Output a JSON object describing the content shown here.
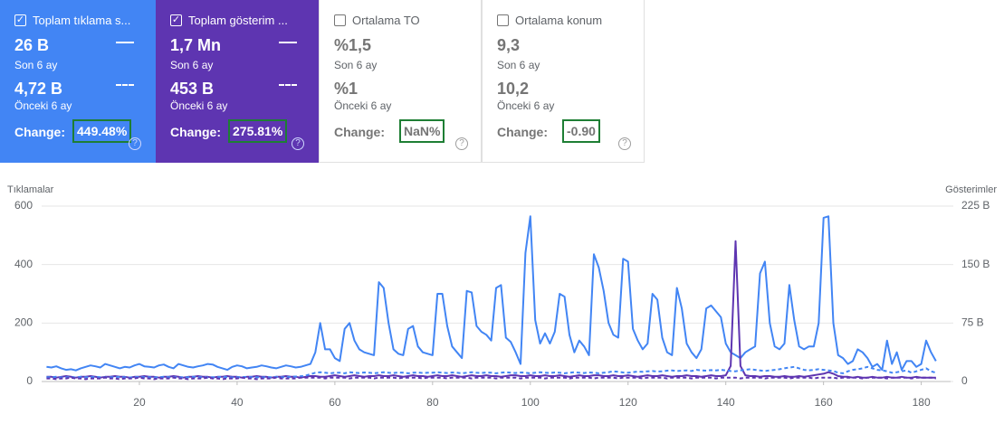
{
  "cards": [
    {
      "title": "Toplam tıklama s...",
      "checked": true,
      "color": "#4285f4",
      "value": "26 B",
      "period": "Son 6 ay",
      "prev_value": "4,72 B",
      "prev_period": "Önceki 6 ay",
      "change_label": "Change:",
      "change": "449.48%"
    },
    {
      "title": "Toplam gösterim ...",
      "checked": true,
      "color": "#5e35b1",
      "value": "1,7 Mn",
      "period": "Son 6 ay",
      "prev_value": "453 B",
      "prev_period": "Önceki 6 ay",
      "change_label": "Change:",
      "change": "275.81%"
    },
    {
      "title": "Ortalama TO",
      "checked": false,
      "value": "%1,5",
      "period": "Son 6 ay",
      "prev_value": "%1",
      "prev_period": "Önceki 6 ay",
      "change_label": "Change:",
      "change": "NaN%"
    },
    {
      "title": "Ortalama konum",
      "checked": false,
      "value": "9,3",
      "period": "Son 6 ay",
      "prev_value": "10,2",
      "prev_period": "Önceki 6 ay",
      "change_label": "Change:",
      "change": "-0.90"
    }
  ],
  "chart_data": {
    "type": "line",
    "y_label": "Tıklamalar",
    "y2_label": "Gösterimler",
    "grid": true,
    "x": [
      1,
      2,
      3,
      4,
      5,
      6,
      7,
      8,
      9,
      10,
      11,
      12,
      13,
      14,
      15,
      16,
      17,
      18,
      19,
      20,
      21,
      22,
      23,
      24,
      25,
      26,
      27,
      28,
      29,
      30,
      31,
      32,
      33,
      34,
      35,
      36,
      37,
      38,
      39,
      40,
      41,
      42,
      43,
      44,
      45,
      46,
      47,
      48,
      49,
      50,
      51,
      52,
      53,
      54,
      55,
      56,
      57,
      58,
      59,
      60,
      61,
      62,
      63,
      64,
      65,
      66,
      67,
      68,
      69,
      70,
      71,
      72,
      73,
      74,
      75,
      76,
      77,
      78,
      79,
      80,
      81,
      82,
      83,
      84,
      85,
      86,
      87,
      88,
      89,
      90,
      91,
      92,
      93,
      94,
      95,
      96,
      97,
      98,
      99,
      100,
      101,
      102,
      103,
      104,
      105,
      106,
      107,
      108,
      109,
      110,
      111,
      112,
      113,
      114,
      115,
      116,
      117,
      118,
      119,
      120,
      121,
      122,
      123,
      124,
      125,
      126,
      127,
      128,
      129,
      130,
      131,
      132,
      133,
      134,
      135,
      136,
      137,
      138,
      139,
      140,
      141,
      142,
      143,
      144,
      145,
      146,
      147,
      148,
      149,
      150,
      151,
      152,
      153,
      154,
      155,
      156,
      157,
      158,
      159,
      160,
      161,
      162,
      163,
      164,
      165,
      166,
      167,
      168,
      169,
      170,
      171,
      172,
      173,
      174,
      175,
      176,
      177,
      178,
      179,
      180,
      181,
      182,
      183
    ],
    "xlim": [
      0,
      186
    ],
    "xticks": [
      20,
      40,
      60,
      80,
      100,
      120,
      140,
      160,
      180
    ],
    "ylim": [
      0,
      600
    ],
    "yticks": [
      0,
      200,
      400,
      600
    ],
    "y2lim": [
      0,
      225
    ],
    "y2ticks": [
      0,
      {
        "value": 75,
        "label": "75 B"
      },
      {
        "value": 150,
        "label": "150 B"
      },
      {
        "value": 225,
        "label": "225 B"
      }
    ],
    "series": [
      {
        "color": "#4285f4",
        "dashed": false,
        "values": [
          50,
          48,
          52,
          45,
          40,
          42,
          38,
          45,
          50,
          55,
          52,
          48,
          60,
          55,
          50,
          45,
          50,
          48,
          55,
          60,
          52,
          50,
          48,
          55,
          58,
          50,
          45,
          60,
          55,
          50,
          48,
          52,
          55,
          60,
          58,
          50,
          45,
          40,
          50,
          55,
          52,
          45,
          48,
          50,
          55,
          52,
          48,
          45,
          50,
          55,
          52,
          48,
          50,
          55,
          60,
          100,
          200,
          110,
          110,
          80,
          70,
          180,
          200,
          140,
          110,
          100,
          95,
          90,
          340,
          320,
          200,
          110,
          95,
          90,
          180,
          190,
          120,
          100,
          95,
          90,
          300,
          300,
          190,
          120,
          100,
          80,
          310,
          305,
          190,
          170,
          160,
          140,
          320,
          330,
          150,
          135,
          100,
          60,
          440,
          565,
          210,
          130,
          165,
          130,
          170,
          300,
          290,
          160,
          100,
          140,
          120,
          90,
          435,
          390,
          310,
          200,
          160,
          150,
          420,
          410,
          180,
          140,
          110,
          130,
          300,
          280,
          150,
          100,
          90,
          320,
          250,
          130,
          100,
          80,
          110,
          250,
          260,
          240,
          220,
          130,
          100,
          90,
          80,
          100,
          110,
          120,
          370,
          410,
          200,
          120,
          110,
          130,
          330,
          210,
          120,
          110,
          120,
          120,
          200,
          560,
          565,
          200,
          90,
          80,
          60,
          70,
          110,
          100,
          80,
          50,
          60,
          40,
          140,
          60,
          100,
          40,
          70,
          70,
          50,
          60,
          140,
          100,
          70
        ]
      },
      {
        "color": "#5e35b1",
        "dashed": false,
        "axis": "y2",
        "values": [
          6,
          6,
          5,
          6,
          7,
          6,
          5,
          6,
          6,
          7,
          6,
          5,
          6,
          6,
          7,
          6,
          6,
          5,
          6,
          6,
          7,
          6,
          6,
          5,
          6,
          6,
          7,
          6,
          5,
          6,
          6,
          7,
          6,
          6,
          5,
          6,
          6,
          7,
          6,
          6,
          5,
          6,
          6,
          7,
          6,
          6,
          5,
          6,
          6,
          7,
          6,
          6,
          5,
          6,
          7,
          7,
          6,
          6,
          7,
          8,
          7,
          6,
          7,
          8,
          7,
          6,
          7,
          7,
          8,
          7,
          7,
          8,
          7,
          6,
          7,
          8,
          7,
          7,
          6,
          7,
          8,
          7,
          7,
          8,
          7,
          6,
          7,
          8,
          7,
          7,
          8,
          7,
          7,
          6,
          7,
          8,
          8,
          7,
          7,
          8,
          7,
          7,
          8,
          7,
          7,
          8,
          7,
          6,
          7,
          8,
          7,
          7,
          8,
          8,
          7,
          7,
          8,
          7,
          7,
          8,
          7,
          6,
          7,
          8,
          7,
          7,
          8,
          7,
          6,
          7,
          7,
          8,
          7,
          7,
          6,
          7,
          8,
          7,
          7,
          8,
          20,
          180,
          20,
          8,
          7,
          7,
          6,
          7,
          7,
          6,
          6,
          7,
          6,
          6,
          7,
          6,
          7,
          8,
          9,
          10,
          12,
          10,
          7,
          6,
          6,
          5,
          6,
          5,
          5,
          6,
          5,
          5,
          6,
          5,
          5,
          6,
          5,
          5,
          6,
          5,
          5,
          5,
          5
        ]
      },
      {
        "color": "#4285f4",
        "dashed": true,
        "values": [
          15,
          15,
          16,
          14,
          15,
          15,
          14,
          16,
          15,
          15,
          16,
          15,
          14,
          15,
          15,
          16,
          15,
          14,
          15,
          16,
          15,
          15,
          14,
          15,
          16,
          15,
          15,
          14,
          15,
          15,
          16,
          15,
          15,
          14,
          15,
          15,
          16,
          15,
          14,
          15,
          15,
          16,
          15,
          15,
          14,
          15,
          15,
          16,
          15,
          15,
          16,
          17,
          18,
          20,
          25,
          30,
          32,
          30,
          28,
          30,
          30,
          28,
          32,
          30,
          29,
          31,
          30,
          28,
          30,
          32,
          30,
          29,
          31,
          30,
          28,
          30,
          31,
          29,
          30,
          30,
          32,
          30,
          29,
          31,
          30,
          28,
          30,
          32,
          30,
          29,
          31,
          30,
          28,
          30,
          32,
          30,
          29,
          31,
          30,
          28,
          30,
          32,
          30,
          29,
          31,
          30,
          28,
          30,
          32,
          30,
          29,
          31,
          30,
          28,
          30,
          32,
          35,
          33,
          31,
          30,
          32,
          34,
          33,
          35,
          36,
          34,
          35,
          37,
          38,
          36,
          37,
          38,
          36,
          40,
          38,
          37,
          39,
          38,
          40,
          38,
          36,
          35,
          38,
          40,
          42,
          40,
          38,
          36,
          38,
          40,
          42,
          45,
          48,
          50,
          45,
          40,
          38,
          40,
          42,
          40,
          38,
          36,
          30,
          28,
          35,
          40,
          42,
          45,
          50,
          45,
          40,
          38,
          35,
          30,
          32,
          35,
          38,
          30,
          35,
          40,
          45,
          35,
          30
        ]
      },
      {
        "color": "#5e35b1",
        "dashed": true,
        "axis": "y2",
        "values": [
          4,
          4,
          3,
          4,
          4,
          5,
          4,
          4,
          3,
          4,
          4,
          4,
          5,
          4,
          4,
          3,
          4,
          4,
          4,
          5,
          4,
          4,
          3,
          4,
          4,
          4,
          5,
          4,
          4,
          3,
          4,
          4,
          4,
          5,
          4,
          4,
          3,
          4,
          4,
          4,
          5,
          4,
          4,
          3,
          4,
          4,
          4,
          5,
          4,
          4,
          4,
          4,
          5,
          5,
          5,
          5,
          5,
          4,
          5,
          5,
          5,
          5,
          4,
          5,
          5,
          5,
          5,
          4,
          5,
          5,
          5,
          5,
          4,
          5,
          5,
          5,
          5,
          4,
          5,
          5,
          5,
          5,
          4,
          5,
          5,
          5,
          5,
          4,
          5,
          5,
          5,
          5,
          4,
          5,
          5,
          5,
          5,
          4,
          5,
          5,
          5,
          5,
          4,
          5,
          5,
          5,
          5,
          4,
          5,
          5,
          5,
          5,
          4,
          5,
          5,
          5,
          5,
          4,
          5,
          5,
          5,
          5,
          4,
          5,
          5,
          5,
          5,
          4,
          5,
          5,
          5,
          5,
          4,
          5,
          5,
          5,
          5,
          4,
          5,
          5,
          5,
          5,
          4,
          5,
          5,
          5,
          5,
          4,
          5,
          5,
          5,
          5,
          4,
          5,
          5,
          5,
          5,
          4,
          5,
          5,
          5,
          5,
          4,
          5,
          5,
          5,
          5,
          4,
          5,
          5,
          5,
          5,
          4,
          5,
          5,
          5,
          5,
          4,
          5,
          5,
          5,
          5,
          4
        ]
      }
    ]
  }
}
